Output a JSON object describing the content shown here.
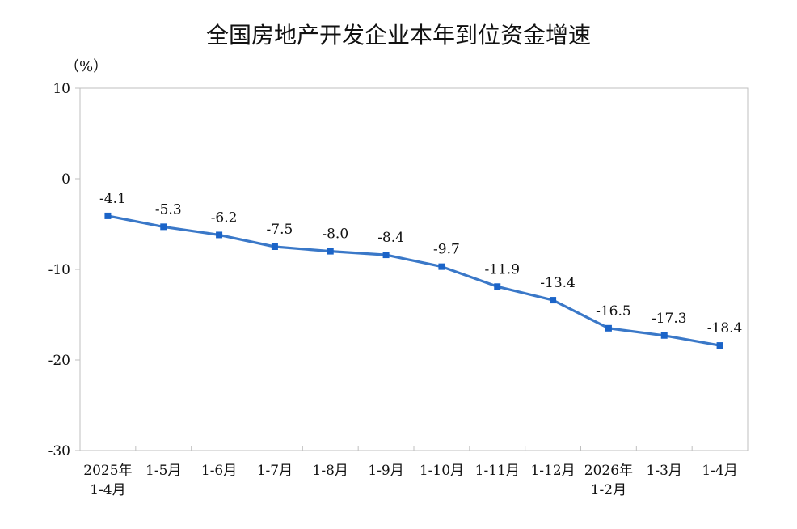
{
  "chart_data": {
    "type": "line",
    "title": "全国房地产开发企业本年到位资金增速",
    "unit_label": "（%）",
    "categories": [
      [
        "2025年",
        "1-4月"
      ],
      [
        "1-5月"
      ],
      [
        "1-6月"
      ],
      [
        "1-7月"
      ],
      [
        "1-8月"
      ],
      [
        "1-9月"
      ],
      [
        "1-10月"
      ],
      [
        "1-11月"
      ],
      [
        "1-12月"
      ],
      [
        "2026年",
        "1-2月"
      ],
      [
        "1-3月"
      ],
      [
        "1-4月"
      ]
    ],
    "values": [
      -4.1,
      -5.3,
      -6.2,
      -7.5,
      -8.0,
      -8.4,
      -9.7,
      -11.9,
      -13.4,
      -16.5,
      -17.3,
      -18.4
    ],
    "data_labels": [
      "-4.1",
      "-5.3",
      "-6.2",
      "-7.5",
      "-8.0",
      "-8.4",
      "-9.7",
      "-11.9",
      "-13.4",
      "-16.5",
      "-17.3",
      "-18.4"
    ],
    "ylim": [
      -30,
      10
    ],
    "yticks": [
      "10",
      "0",
      "-10",
      "-20",
      "-30"
    ],
    "line_color": "#3a78c8",
    "grid": false,
    "legend": "none"
  }
}
